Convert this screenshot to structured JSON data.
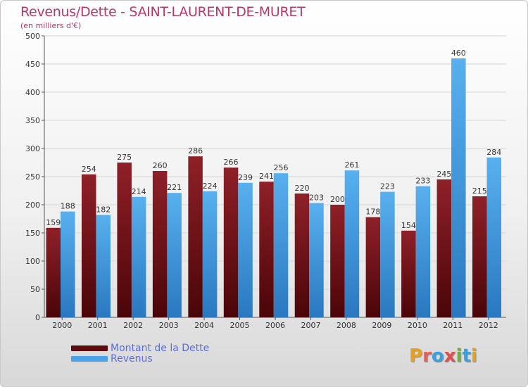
{
  "title": "Revenus/Dette - SAINT-LAURENT-DE-MURET",
  "subtitle": "(en milliers d'€)",
  "colors": {
    "dette": "#8a1820",
    "revenus": "#4aa3e8",
    "title": "#b5386b",
    "legend_text": "#5a6ee0"
  },
  "legend": [
    {
      "label": "Montant de la Dette",
      "color": "#5c0a10"
    },
    {
      "label": "Revenus",
      "color": "#4aa3e8"
    }
  ],
  "logo": {
    "text": "Proxiti",
    "letters": [
      "P",
      "r",
      "o",
      "x",
      "i",
      "t",
      "i"
    ],
    "colors": [
      "#e8a020",
      "#e06060",
      "#3aa0e0",
      "#e05050",
      "#70b040",
      "#3aa0e0",
      "#e8a020"
    ]
  },
  "chart_data": {
    "type": "bar",
    "title": "Revenus/Dette - SAINT-LAURENT-DE-MURET",
    "subtitle": "(en milliers d'€)",
    "categories": [
      "2000",
      "2001",
      "2002",
      "2003",
      "2004",
      "2005",
      "2006",
      "2007",
      "2008",
      "2009",
      "2010",
      "2011",
      "2012"
    ],
    "series": [
      {
        "name": "Montant de la Dette",
        "values": [
          159,
          254,
          275,
          260,
          286,
          266,
          241,
          220,
          200,
          178,
          154,
          245,
          215
        ]
      },
      {
        "name": "Revenus",
        "values": [
          188,
          182,
          214,
          221,
          224,
          239,
          256,
          203,
          261,
          223,
          233,
          460,
          284
        ]
      }
    ],
    "ylim": [
      0,
      500
    ],
    "yticks": [
      0,
      50,
      100,
      150,
      200,
      250,
      300,
      350,
      400,
      450,
      500
    ],
    "grid": true,
    "legend_position": "bottom-left"
  }
}
